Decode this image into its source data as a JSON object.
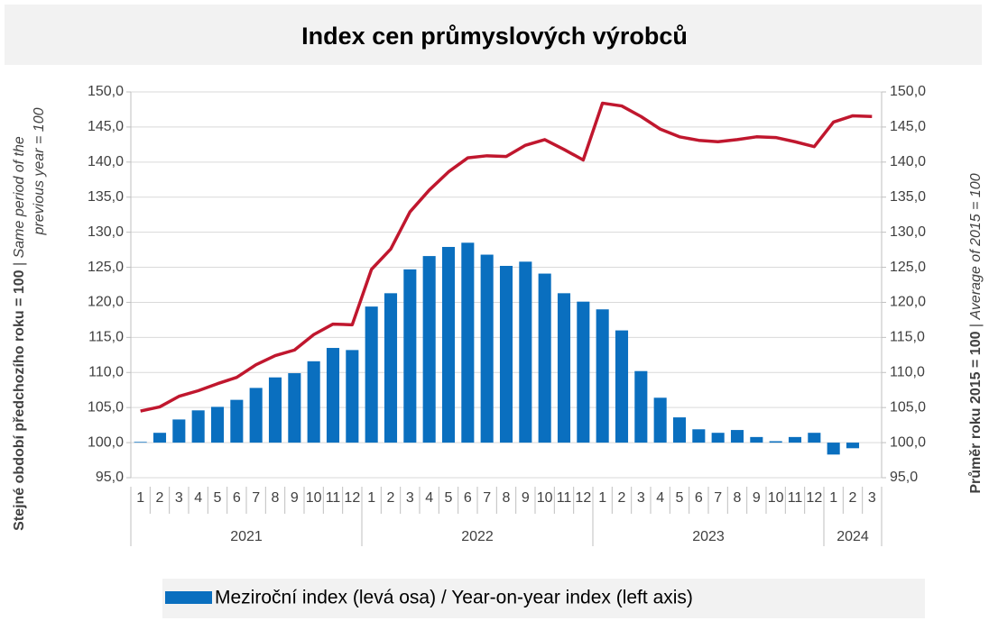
{
  "chart_data": {
    "type": "bar_line",
    "title": "Index cen průmyslových výrobců",
    "y_label": {
      "bold": "Stejné období předchozího roku = 100",
      "separator": "|",
      "italic": [
        "Same period of the",
        "previous year = 100"
      ]
    },
    "y2_label": {
      "bold": "Průměr roku 2015 = 100",
      "separator": "|",
      "italic": "Average of 2015 = 100"
    },
    "groups": [
      {
        "label": "2021",
        "months": [
          "1",
          "2",
          "3",
          "4",
          "5",
          "6",
          "7",
          "8",
          "9",
          "10",
          "11",
          "12"
        ]
      },
      {
        "label": "2022",
        "months": [
          "1",
          "2",
          "3",
          "4",
          "5",
          "6",
          "7",
          "8",
          "9",
          "10",
          "11",
          "12"
        ]
      },
      {
        "label": "2023",
        "months": [
          "1",
          "2",
          "3",
          "4",
          "5",
          "6",
          "7",
          "8",
          "9",
          "10",
          "11",
          "12"
        ]
      },
      {
        "label": "2024",
        "months": [
          "1",
          "2",
          "3"
        ]
      }
    ],
    "series": [
      {
        "name": "Meziroční index (levá osa) / Year-on-year index (left axis)",
        "type": "bar",
        "color": "#0a6fbf",
        "values": [
          100.1,
          101.4,
          103.3,
          104.6,
          105.1,
          106.1,
          107.8,
          109.3,
          109.9,
          111.6,
          113.5,
          113.2,
          119.4,
          121.3,
          124.7,
          126.6,
          127.9,
          128.5,
          126.8,
          125.2,
          125.8,
          124.1,
          121.3,
          120.1,
          119.0,
          116.0,
          110.2,
          106.4,
          103.6,
          101.9,
          101.4,
          101.8,
          100.8,
          100.2,
          100.8,
          101.4,
          98.3,
          99.2,
          100.0
        ]
      },
      {
        "type": "line",
        "axis": "y2",
        "color": "#c0172e",
        "values": [
          104.5,
          105.1,
          106.6,
          107.4,
          108.4,
          109.3,
          111.1,
          112.4,
          113.2,
          115.4,
          116.9,
          116.8,
          124.7,
          127.6,
          132.9,
          136.0,
          138.6,
          140.6,
          140.9,
          140.8,
          142.4,
          143.2,
          141.8,
          140.3,
          148.4,
          148.0,
          146.5,
          144.7,
          143.6,
          143.1,
          142.9,
          143.2,
          143.6,
          143.5,
          142.9,
          142.2,
          145.7,
          146.6,
          146.5
        ]
      }
    ],
    "ylim": [
      95,
      150
    ],
    "yticks": [
      {
        "value": 95,
        "label": "95,0"
      },
      {
        "value": 100,
        "label": "100,0"
      },
      {
        "value": 105,
        "label": "105,0"
      },
      {
        "value": 110,
        "label": "110,0"
      },
      {
        "value": 115,
        "label": "115,0"
      },
      {
        "value": 120,
        "label": "120,0"
      },
      {
        "value": 125,
        "label": "125,0"
      },
      {
        "value": 130,
        "label": "130,0"
      },
      {
        "value": 135,
        "label": "135,0"
      },
      {
        "value": 140,
        "label": "140,0"
      },
      {
        "value": 145,
        "label": "145,0"
      },
      {
        "value": 150,
        "label": "150,0"
      }
    ],
    "y2lim": [
      95,
      150
    ],
    "y2ticks": [
      {
        "value": 95,
        "label": "95,0"
      },
      {
        "value": 100,
        "label": "100,0"
      },
      {
        "value": 105,
        "label": "105,0"
      },
      {
        "value": 110,
        "label": "110,0"
      },
      {
        "value": 115,
        "label": "115,0"
      },
      {
        "value": 120,
        "label": "120,0"
      },
      {
        "value": 125,
        "label": "125,0"
      },
      {
        "value": 130,
        "label": "130,0"
      },
      {
        "value": 135,
        "label": "135,0"
      },
      {
        "value": 140,
        "label": "140,0"
      },
      {
        "value": 145,
        "label": "145,0"
      },
      {
        "value": 150,
        "label": "150,0"
      }
    ],
    "bar_base": 100,
    "grid": true
  }
}
